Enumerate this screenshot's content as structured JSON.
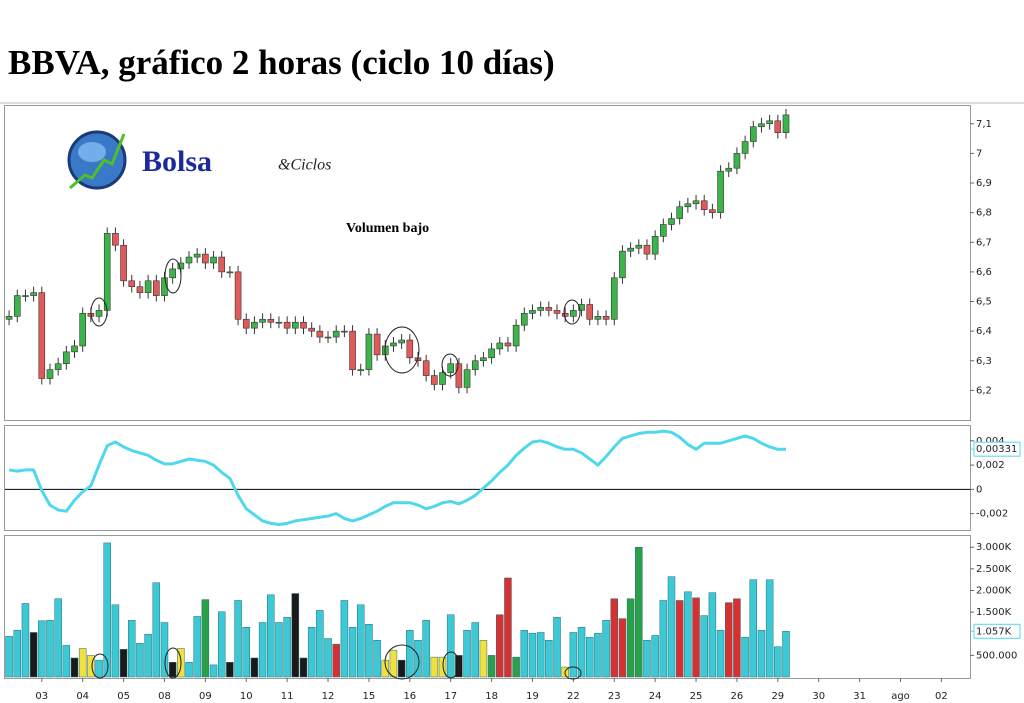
{
  "logo": {
    "brand": "Bolsa",
    "suffix": "&Ciclos"
  },
  "chart_data": [
    {
      "type": "candlestick",
      "title": "BBVA, gráfico 2 horas (ciclo 10 días)",
      "annotation": "Volumen bajo",
      "up_color": "#3cb44b",
      "down_color": "#e05a5a",
      "grid": false,
      "xlim": [
        -0.5,
        117.5
      ],
      "ylim": [
        6.1,
        7.16
      ],
      "yticks": [
        {
          "value": 6.2,
          "label": "6,2"
        },
        {
          "value": 6.3,
          "label": "6,3"
        },
        {
          "value": 6.4,
          "label": "6,4"
        },
        {
          "value": 6.5,
          "label": "6,5"
        },
        {
          "value": 6.6,
          "label": "6,6"
        },
        {
          "value": 6.7,
          "label": "6,7"
        },
        {
          "value": 6.8,
          "label": "6,8"
        },
        {
          "value": 6.9,
          "label": "6,9"
        },
        7,
        {
          "value": 7.1,
          "label": "7,1"
        }
      ],
      "open": [
        6.44,
        6.45,
        6.52,
        6.52,
        6.53,
        6.24,
        6.27,
        6.29,
        6.33,
        6.35,
        6.46,
        6.45,
        6.47,
        6.73,
        6.69,
        6.57,
        6.55,
        6.53,
        6.57,
        6.52,
        6.58,
        6.61,
        6.63,
        6.65,
        6.66,
        6.63,
        6.65,
        6.6,
        6.6,
        6.44,
        6.41,
        6.43,
        6.44,
        6.43,
        6.43,
        6.41,
        6.43,
        6.41,
        6.4,
        6.38,
        6.38,
        6.4,
        6.4,
        6.27,
        6.27,
        6.39,
        6.32,
        6.35,
        6.36,
        6.37,
        6.31,
        6.3,
        6.25,
        6.22,
        6.26,
        6.29,
        6.21,
        6.27,
        6.3,
        6.31,
        6.34,
        6.36,
        6.35,
        6.42,
        6.46,
        6.47,
        6.48,
        6.47,
        6.46,
        6.45,
        6.47,
        6.49,
        6.44,
        6.45,
        6.44,
        6.58,
        6.67,
        6.68,
        6.69,
        6.66,
        6.72,
        6.76,
        6.78,
        6.82,
        6.83,
        6.84,
        6.81,
        6.8,
        6.94,
        6.95,
        7.0,
        7.04,
        7.09,
        7.1,
        7.11,
        7.07
      ],
      "high": [
        6.47,
        6.54,
        6.54,
        6.55,
        6.55,
        6.29,
        6.31,
        6.35,
        6.37,
        6.48,
        6.48,
        6.49,
        6.75,
        6.75,
        6.71,
        6.59,
        6.57,
        6.59,
        6.59,
        6.6,
        6.63,
        6.65,
        6.67,
        6.68,
        6.68,
        6.67,
        6.67,
        6.62,
        6.62,
        6.46,
        6.45,
        6.46,
        6.46,
        6.45,
        6.45,
        6.45,
        6.45,
        6.43,
        6.42,
        6.4,
        6.42,
        6.42,
        6.42,
        6.29,
        6.41,
        6.41,
        6.37,
        6.38,
        6.39,
        6.39,
        6.33,
        6.32,
        6.27,
        6.28,
        6.31,
        6.31,
        6.29,
        6.32,
        6.33,
        6.36,
        6.38,
        6.38,
        6.44,
        6.48,
        6.49,
        6.5,
        6.5,
        6.49,
        6.48,
        6.49,
        6.51,
        6.51,
        6.47,
        6.47,
        6.6,
        6.69,
        6.7,
        6.71,
        6.71,
        6.74,
        6.78,
        6.8,
        6.84,
        6.85,
        6.86,
        6.86,
        6.83,
        6.96,
        6.97,
        7.02,
        7.06,
        7.11,
        7.12,
        7.13,
        7.13,
        7.15
      ],
      "low": [
        6.42,
        6.43,
        6.5,
        6.5,
        6.22,
        6.22,
        6.25,
        6.27,
        6.31,
        6.33,
        6.43,
        6.43,
        6.45,
        6.67,
        6.55,
        6.53,
        6.51,
        6.51,
        6.5,
        6.5,
        6.56,
        6.59,
        6.61,
        6.63,
        6.61,
        6.61,
        6.58,
        6.58,
        6.42,
        6.39,
        6.39,
        6.41,
        6.41,
        6.41,
        6.39,
        6.39,
        6.39,
        6.38,
        6.36,
        6.36,
        6.36,
        6.38,
        6.25,
        6.25,
        6.25,
        6.3,
        6.3,
        6.33,
        6.34,
        6.29,
        6.28,
        6.23,
        6.2,
        6.2,
        6.24,
        6.19,
        6.19,
        6.25,
        6.28,
        6.29,
        6.32,
        6.33,
        6.33,
        6.4,
        6.44,
        6.45,
        6.45,
        6.44,
        6.43,
        6.43,
        6.45,
        6.42,
        6.42,
        6.42,
        6.42,
        6.56,
        6.65,
        6.66,
        6.64,
        6.64,
        6.7,
        6.74,
        6.76,
        6.8,
        6.81,
        6.79,
        6.78,
        6.78,
        6.92,
        6.93,
        6.98,
        7.02,
        7.07,
        7.08,
        7.05,
        7.05
      ],
      "close": [
        6.45,
        6.52,
        6.52,
        6.53,
        6.24,
        6.27,
        6.29,
        6.33,
        6.35,
        6.46,
        6.45,
        6.47,
        6.73,
        6.69,
        6.57,
        6.55,
        6.53,
        6.57,
        6.52,
        6.58,
        6.61,
        6.63,
        6.65,
        6.66,
        6.63,
        6.65,
        6.6,
        6.6,
        6.44,
        6.41,
        6.43,
        6.44,
        6.43,
        6.43,
        6.41,
        6.43,
        6.41,
        6.4,
        6.38,
        6.38,
        6.4,
        6.4,
        6.27,
        6.27,
        6.39,
        6.32,
        6.35,
        6.36,
        6.37,
        6.31,
        6.3,
        6.25,
        6.22,
        6.26,
        6.29,
        6.21,
        6.27,
        6.3,
        6.31,
        6.34,
        6.36,
        6.35,
        6.42,
        6.46,
        6.47,
        6.48,
        6.47,
        6.46,
        6.45,
        6.47,
        6.49,
        6.44,
        6.45,
        6.44,
        6.58,
        6.67,
        6.68,
        6.69,
        6.66,
        6.72,
        6.76,
        6.78,
        6.82,
        6.83,
        6.84,
        6.81,
        6.8,
        6.94,
        6.95,
        7.0,
        7.04,
        7.09,
        7.1,
        7.11,
        7.07,
        7.13
      ]
    },
    {
      "type": "line",
      "color": "#4fd8ec",
      "grid": false,
      "zero_line": true,
      "xlim": [
        -0.5,
        117.5
      ],
      "ylim": [
        -0.00335,
        0.00522
      ],
      "yticks": [
        {
          "value": -0.002,
          "label": "-0,002"
        },
        0,
        {
          "value": 0.002,
          "label": "0,002"
        },
        {
          "value": 0.004,
          "label": "0,004"
        }
      ],
      "last_value": 0.00331,
      "last_label": "0,00331",
      "values": [
        0.0016,
        0.0015,
        0.0016,
        0.0016,
        -0.0001,
        -0.0013,
        -0.0017,
        -0.0018,
        -0.0009,
        -0.0002,
        0.0003,
        0.002,
        0.0036,
        0.0039,
        0.0035,
        0.0032,
        0.003,
        0.0028,
        0.0024,
        0.0021,
        0.0021,
        0.0023,
        0.0025,
        0.0024,
        0.0023,
        0.002,
        0.0014,
        0.0009,
        -0.0005,
        -0.0016,
        -0.0021,
        -0.0026,
        -0.0028,
        -0.0029,
        -0.0028,
        -0.0026,
        -0.0025,
        -0.0024,
        -0.0023,
        -0.0022,
        -0.002,
        -0.0024,
        -0.0026,
        -0.0024,
        -0.0021,
        -0.0018,
        -0.0014,
        -0.0011,
        -0.0011,
        -0.0011,
        -0.0013,
        -0.0016,
        -0.0014,
        -0.0011,
        -0.001,
        -0.0012,
        -0.0009,
        -0.0005,
        0.0001,
        0.0007,
        0.0014,
        0.002,
        0.0028,
        0.0034,
        0.0039,
        0.004,
        0.0038,
        0.0035,
        0.0033,
        0.0033,
        0.003,
        0.0025,
        0.002,
        0.0027,
        0.0035,
        0.0042,
        0.0044,
        0.0046,
        0.0047,
        0.0047,
        0.0048,
        0.0047,
        0.0043,
        0.0037,
        0.0033,
        0.0038,
        0.0038,
        0.0038,
        0.004,
        0.0042,
        0.0044,
        0.0042,
        0.0038,
        0.0035,
        0.0033,
        0.0033
      ]
    },
    {
      "type": "bar",
      "grid": false,
      "xlim": [
        -0.5,
        117.5
      ],
      "ylim": [
        0,
        3260000
      ],
      "yticks": [
        {
          "value": 500000,
          "label": "500.000"
        },
        {
          "value": 1500000,
          "label": "1.500K"
        },
        {
          "value": 2000000,
          "label": "2.000K"
        },
        {
          "value": 2500000,
          "label": "2.500K"
        },
        {
          "value": 3000000,
          "label": "3.000K"
        }
      ],
      "xticks": [
        {
          "value": 4,
          "label": "03"
        },
        {
          "value": 9,
          "label": "04"
        },
        {
          "value": 14,
          "label": "05"
        },
        {
          "value": 19,
          "label": "08"
        },
        {
          "value": 24,
          "label": "09"
        },
        {
          "value": 29,
          "label": "10"
        },
        {
          "value": 34,
          "label": "11"
        },
        {
          "value": 39,
          "label": "12"
        },
        {
          "value": 44,
          "label": "15"
        },
        {
          "value": 49,
          "label": "16"
        },
        {
          "value": 54,
          "label": "17"
        },
        {
          "value": 59,
          "label": "18"
        },
        {
          "value": 64,
          "label": "19"
        },
        {
          "value": 69,
          "label": "22"
        },
        {
          "value": 74,
          "label": "23"
        },
        {
          "value": 79,
          "label": "24"
        },
        {
          "value": 84,
          "label": "25"
        },
        {
          "value": 89,
          "label": "26"
        },
        {
          "value": 94,
          "label": "29"
        },
        {
          "value": 99,
          "label": "30"
        },
        {
          "value": 104,
          "label": "31"
        },
        {
          "value": 109,
          "label": "ago"
        },
        {
          "value": 114,
          "label": "02"
        }
      ],
      "last_value": 1057000,
      "last_label": "1.057K",
      "values": [
        940000,
        1080000,
        1700000,
        1030000,
        1300000,
        1310000,
        1810000,
        730000,
        440000,
        660000,
        500000,
        390000,
        3100000,
        1670000,
        640000,
        1310000,
        780000,
        990000,
        2180000,
        1260000,
        340000,
        660000,
        340000,
        1400000,
        1790000,
        280000,
        1510000,
        340000,
        1770000,
        1150000,
        440000,
        1260000,
        1900000,
        1260000,
        1380000,
        1930000,
        440000,
        1150000,
        1540000,
        890000,
        760000,
        1770000,
        1150000,
        1670000,
        1220000,
        850000,
        390000,
        620000,
        390000,
        1080000,
        850000,
        1310000,
        460000,
        460000,
        1440000,
        500000,
        1080000,
        1260000,
        850000,
        500000,
        1440000,
        2290000,
        460000,
        1080000,
        1010000,
        1030000,
        850000,
        1380000,
        230000,
        1030000,
        1150000,
        920000,
        1010000,
        1310000,
        1810000,
        1350000,
        1810000,
        3000000,
        850000,
        960000,
        1770000,
        2320000,
        1770000,
        1970000,
        1830000,
        1420000,
        1950000,
        1080000,
        1720000,
        1810000,
        920000,
        2250000,
        1080000,
        2250000,
        700000,
        1057000
      ],
      "colors": [
        "#3cc8d4",
        "#3cc8d4",
        "#3cc8d4",
        "#1a1a1a",
        "#3cc8d4",
        "#3cc8d4",
        "#3cc8d4",
        "#3cc8d4",
        "#1a1a1a",
        "#f0e040",
        "#f0e040",
        "#3cc8d4",
        "#3cc8d4",
        "#3cc8d4",
        "#1a1a1a",
        "#3cc8d4",
        "#3cc8d4",
        "#3cc8d4",
        "#3cc8d4",
        "#3cc8d4",
        "#1a1a1a",
        "#f0e040",
        "#3cc8d4",
        "#3cc8d4",
        "#2aa048",
        "#3cc8d4",
        "#3cc8d4",
        "#1a1a1a",
        "#3cc8d4",
        "#3cc8d4",
        "#1a1a1a",
        "#3cc8d4",
        "#3cc8d4",
        "#3cc8d4",
        "#3cc8d4",
        "#1a1a1a",
        "#1a1a1a",
        "#3cc8d4",
        "#3cc8d4",
        "#3cc8d4",
        "#d83030",
        "#3cc8d4",
        "#3cc8d4",
        "#3cc8d4",
        "#3cc8d4",
        "#3cc8d4",
        "#f0e040",
        "#f0e040",
        "#1a1a1a",
        "#3cc8d4",
        "#3cc8d4",
        "#3cc8d4",
        "#f0e040",
        "#f0e040",
        "#3cc8d4",
        "#1a1a1a",
        "#3cc8d4",
        "#3cc8d4",
        "#f0e040",
        "#2aa048",
        "#d83030",
        "#d83030",
        "#2aa048",
        "#3cc8d4",
        "#3cc8d4",
        "#3cc8d4",
        "#3cc8d4",
        "#3cc8d4",
        "#f0e040",
        "#3cc8d4",
        "#3cc8d4",
        "#3cc8d4",
        "#3cc8d4",
        "#3cc8d4",
        "#d83030",
        "#d83030",
        "#2aa048",
        "#2aa048",
        "#3cc8d4",
        "#3cc8d4",
        "#3cc8d4",
        "#3cc8d4",
        "#d83030",
        "#3cc8d4",
        "#d83030",
        "#3cc8d4",
        "#3cc8d4",
        "#3cc8d4",
        "#d83030",
        "#d83030",
        "#3cc8d4",
        "#3cc8d4",
        "#3cc8d4",
        "#3cc8d4",
        "#3cc8d4",
        "#3cc8d4"
      ]
    }
  ]
}
